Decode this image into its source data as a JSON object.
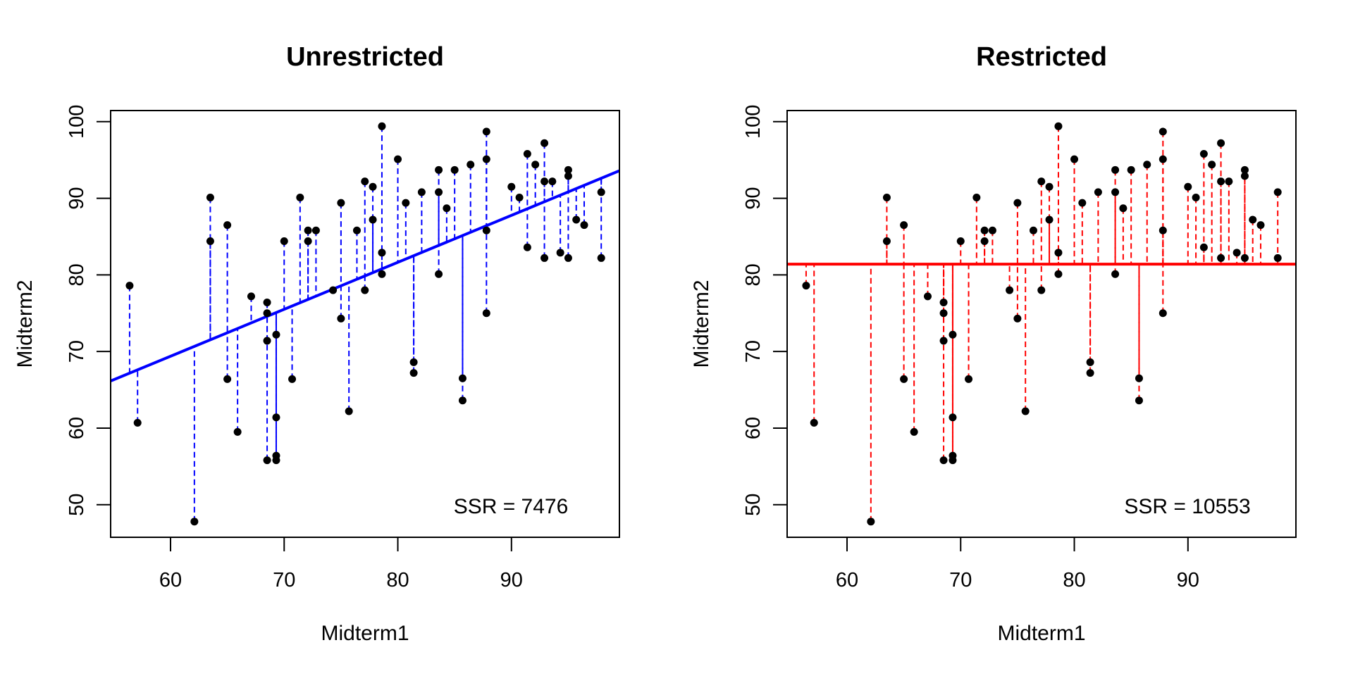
{
  "chart_data": [
    {
      "type": "scatter",
      "title": "Unrestricted",
      "xlabel": "Midterm1",
      "ylabel": "Midterm2",
      "xlim": [
        54.73,
        99.5
      ],
      "ylim": [
        45.75,
        101.45
      ],
      "xticks": [
        60,
        70,
        80,
        90
      ],
      "yticks": [
        50,
        60,
        70,
        80,
        90,
        100
      ],
      "xtick_labels": [
        "60",
        "70",
        "80",
        "90"
      ],
      "ytick_labels": [
        "50",
        "60",
        "70",
        "80",
        "90",
        "100"
      ],
      "grid": false,
      "fit_line": {
        "kind": "regression",
        "intercept": 32.6,
        "slope": 0.613,
        "color": "#0000ff"
      },
      "residual_color": "#0000ff",
      "point_color": "#000000",
      "annotation": "SSR = 7476",
      "annotation_position": "bottom-right"
    },
    {
      "type": "scatter",
      "title": "Restricted",
      "xlabel": "Midterm1",
      "ylabel": "Midterm2",
      "xlim": [
        54.73,
        99.5
      ],
      "ylim": [
        45.75,
        101.45
      ],
      "xticks": [
        60,
        70,
        80,
        90
      ],
      "yticks": [
        50,
        60,
        70,
        80,
        90,
        100
      ],
      "xtick_labels": [
        "60",
        "70",
        "80",
        "90"
      ],
      "ytick_labels": [
        "50",
        "60",
        "70",
        "80",
        "90",
        "100"
      ],
      "grid": false,
      "fit_line": {
        "kind": "horizontal",
        "intercept": 81.4,
        "slope": 0,
        "color": "#ff0000"
      },
      "residual_color": "#ff0000",
      "point_color": "#000000",
      "annotation": "SSR = 10553",
      "annotation_position": "bottom-right"
    }
  ],
  "points": {
    "x": [
      56.4,
      57.1,
      62.1,
      63.5,
      63.5,
      65.0,
      65.0,
      65.9,
      67.1,
      68.5,
      68.5,
      68.5,
      68.5,
      69.3,
      69.3,
      69.3,
      69.3,
      70.0,
      70.7,
      71.4,
      72.1,
      72.1,
      72.8,
      74.3,
      75.0,
      75.0,
      75.7,
      76.4,
      77.1,
      77.1,
      77.8,
      77.8,
      78.6,
      78.6,
      78.6,
      80.0,
      80.7,
      81.4,
      81.4,
      82.1,
      83.6,
      83.6,
      83.6,
      84.3,
      85.0,
      85.7,
      85.7,
      86.4,
      87.8,
      87.8,
      87.8,
      87.8,
      90.0,
      90.7,
      91.4,
      91.4,
      92.1,
      92.9,
      92.9,
      92.9,
      93.6,
      94.3,
      95.0,
      95.0,
      95.0,
      95.7,
      96.4,
      97.9,
      97.9
    ],
    "y": [
      78.6,
      60.7,
      47.8,
      90.1,
      84.4,
      86.5,
      66.4,
      59.5,
      77.2,
      76.4,
      75.0,
      71.4,
      55.8,
      72.2,
      61.4,
      56.4,
      55.8,
      84.4,
      66.4,
      90.1,
      85.8,
      84.4,
      85.8,
      78.0,
      89.4,
      74.3,
      62.2,
      85.8,
      92.2,
      78.0,
      91.5,
      87.2,
      99.4,
      82.9,
      80.1,
      95.1,
      89.4,
      68.6,
      67.2,
      90.8,
      93.7,
      90.8,
      80.1,
      88.7,
      93.7,
      66.5,
      63.6,
      94.4,
      98.7,
      95.1,
      85.8,
      75.0,
      91.5,
      90.1,
      95.8,
      83.6,
      94.4,
      97.2,
      92.2,
      82.2,
      92.2,
      82.9,
      93.7,
      92.9,
      82.2,
      87.2,
      86.5,
      90.8,
      82.2
    ]
  }
}
